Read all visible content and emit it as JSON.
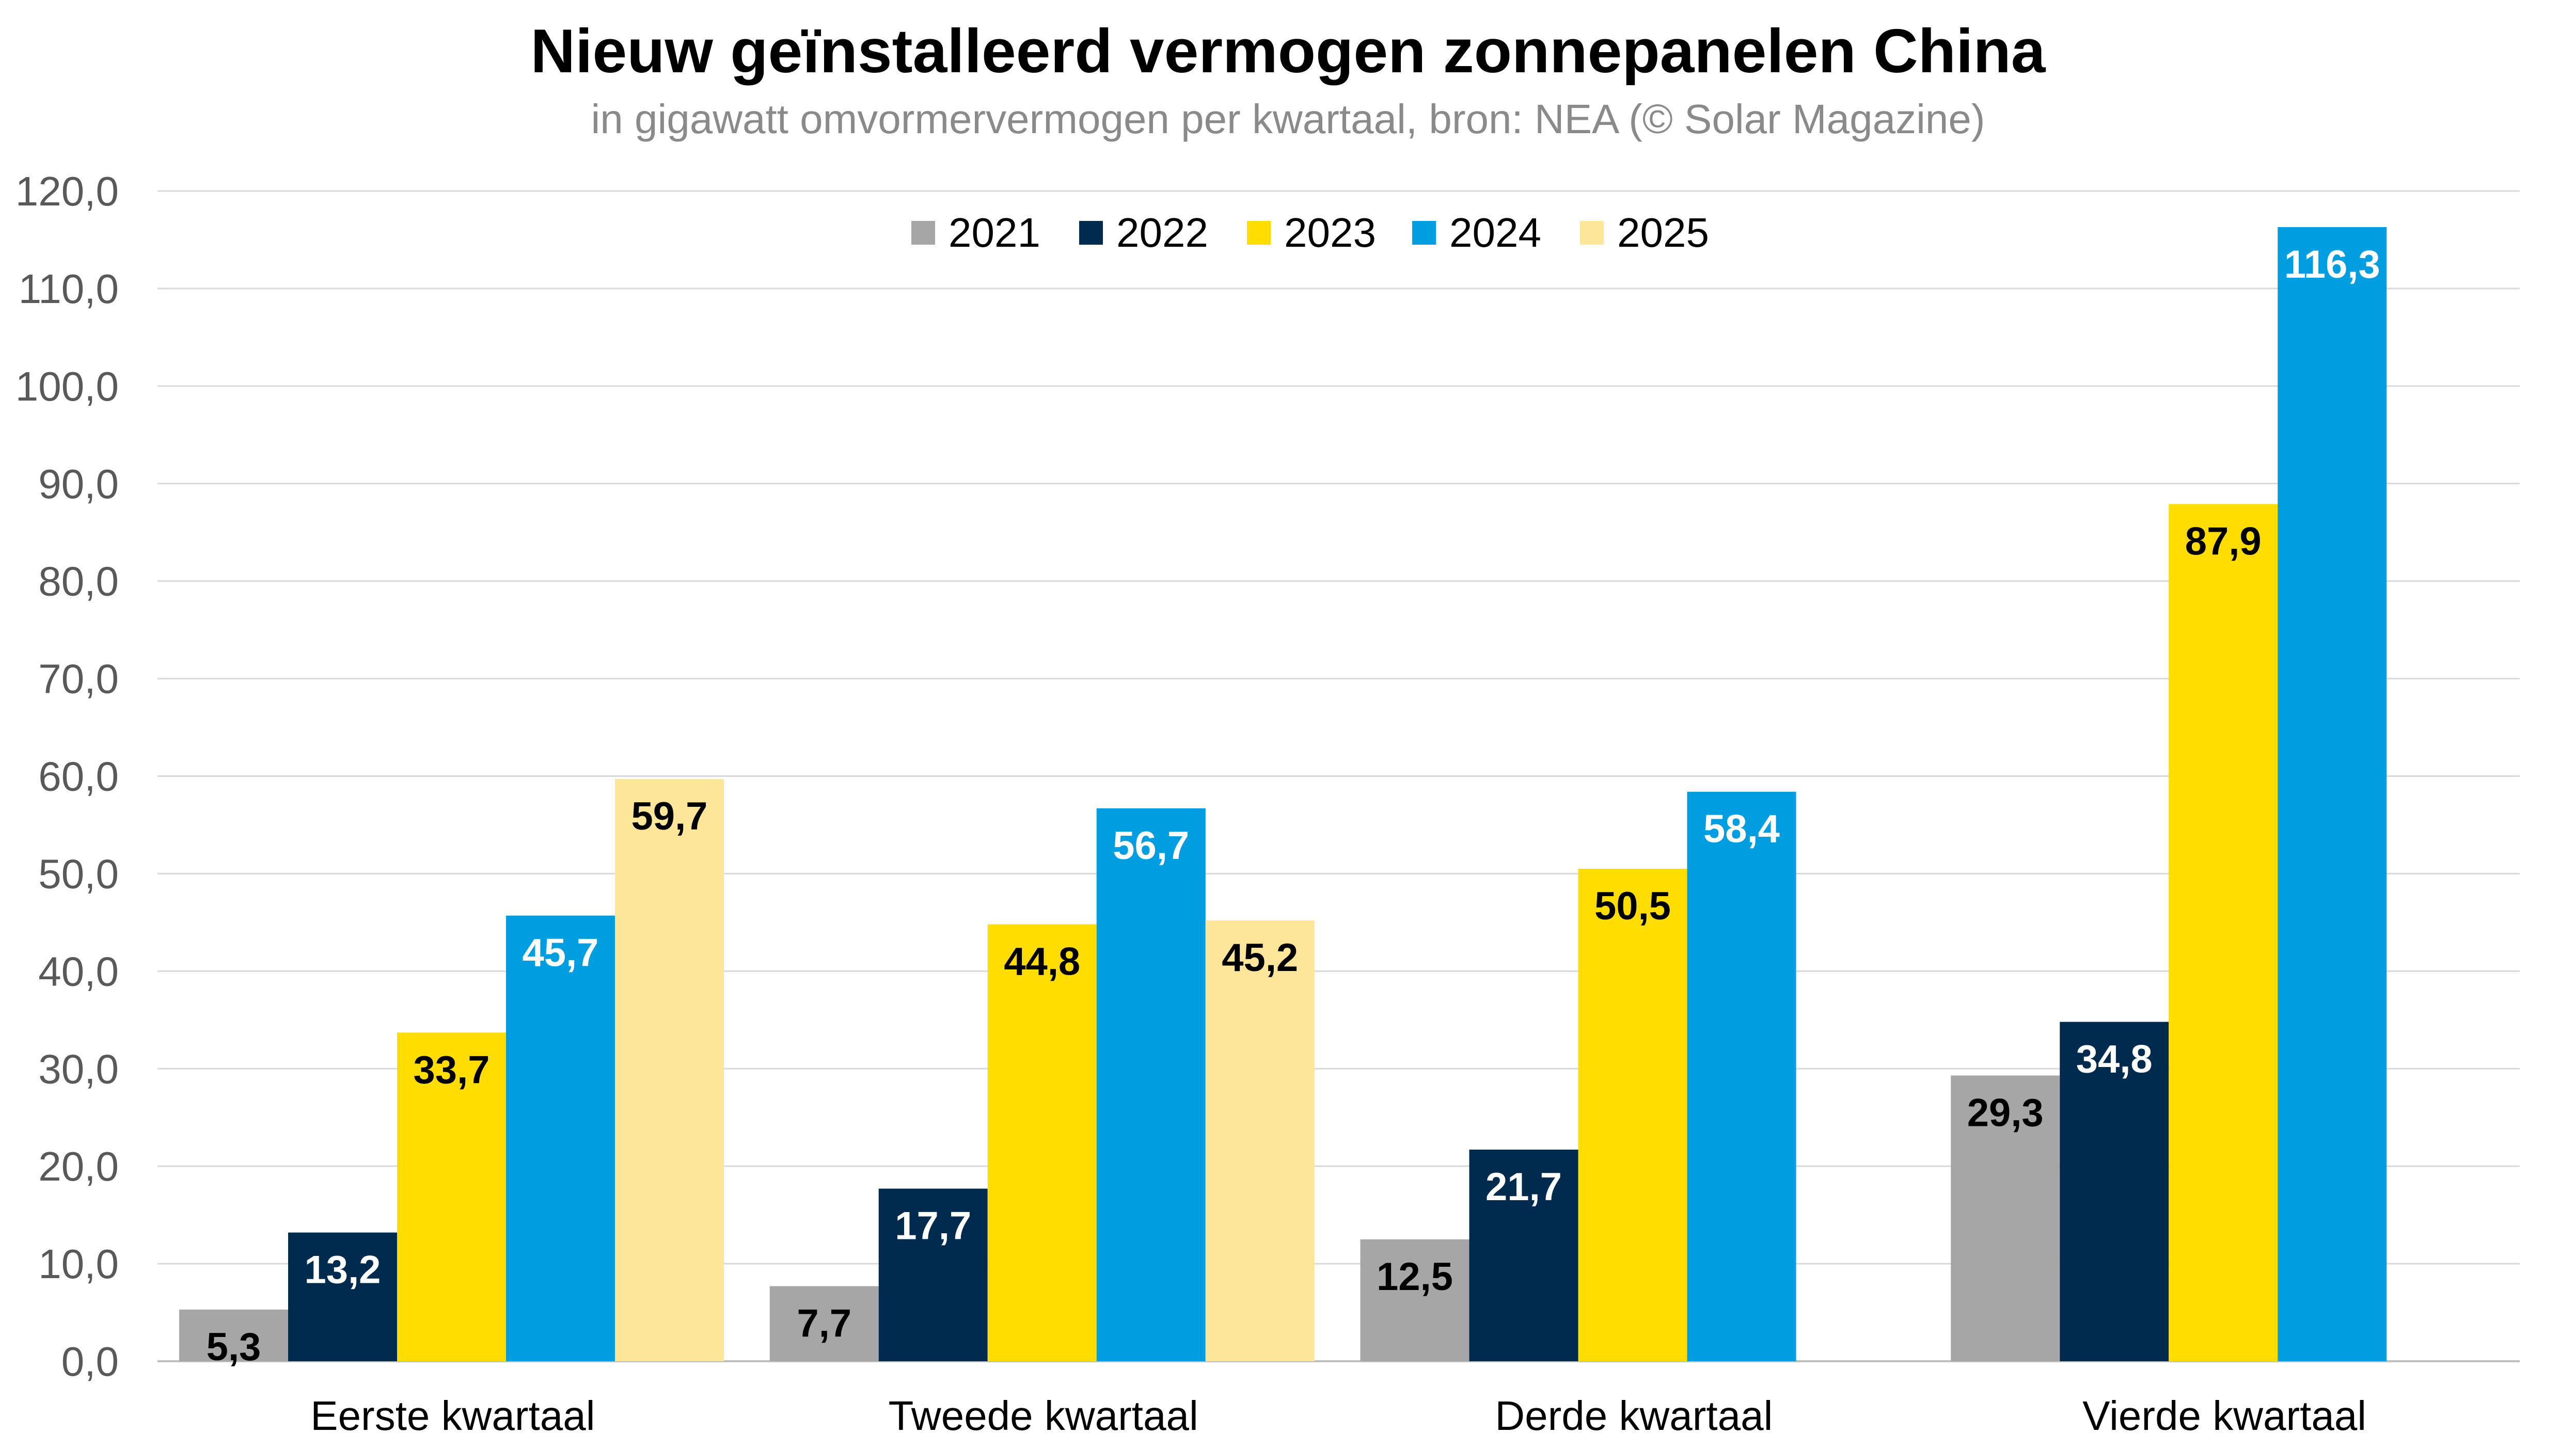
{
  "chart_data": {
    "type": "bar",
    "title": "Nieuw geïnstalleerd vermogen zonnepanelen China",
    "subtitle": "in gigawatt omvormervermogen per kwartaal, bron: NEA (© Solar Magazine)",
    "categories": [
      "Eerste kwartaal",
      "Tweede kwartaal",
      "Derde kwartaal",
      "Vierde kwartaal"
    ],
    "series": [
      {
        "name": "2021",
        "color": "#a6a6a6",
        "label_color": "#000000",
        "values": [
          5.3,
          7.7,
          12.5,
          29.3
        ],
        "labels": [
          "5,3",
          "7,7",
          "12,5",
          "29,3"
        ]
      },
      {
        "name": "2022",
        "color": "#002b4f",
        "label_color": "#ffffff",
        "values": [
          13.2,
          17.7,
          21.7,
          34.8
        ],
        "labels": [
          "13,2",
          "17,7",
          "21,7",
          "34,8"
        ]
      },
      {
        "name": "2023",
        "color": "#ffdd00",
        "label_color": "#000000",
        "values": [
          33.7,
          44.8,
          50.5,
          87.9
        ],
        "labels": [
          "33,7",
          "44,8",
          "50,5",
          "87,9"
        ]
      },
      {
        "name": "2024",
        "color": "#009ee0",
        "label_color": "#ffffff",
        "values": [
          45.7,
          56.7,
          58.4,
          116.3
        ],
        "labels": [
          "45,7",
          "56,7",
          "58,4",
          "116,3"
        ]
      },
      {
        "name": "2025",
        "color": "#fde69a",
        "label_color": "#000000",
        "values": [
          59.7,
          45.2,
          null,
          null
        ],
        "labels": [
          "59,7",
          "45,2",
          "",
          ""
        ]
      }
    ],
    "ylim": [
      0,
      120
    ],
    "yticks": [
      0,
      10,
      20,
      30,
      40,
      50,
      60,
      70,
      80,
      90,
      100,
      110,
      120
    ],
    "ytick_labels": [
      "0,0",
      "10,0",
      "20,0",
      "30,0",
      "40,0",
      "50,0",
      "60,0",
      "70,0",
      "80,0",
      "90,0",
      "100,0",
      "110,0",
      "120,0"
    ],
    "grid": true,
    "legend_position": "top-center",
    "data_labels": true
  }
}
